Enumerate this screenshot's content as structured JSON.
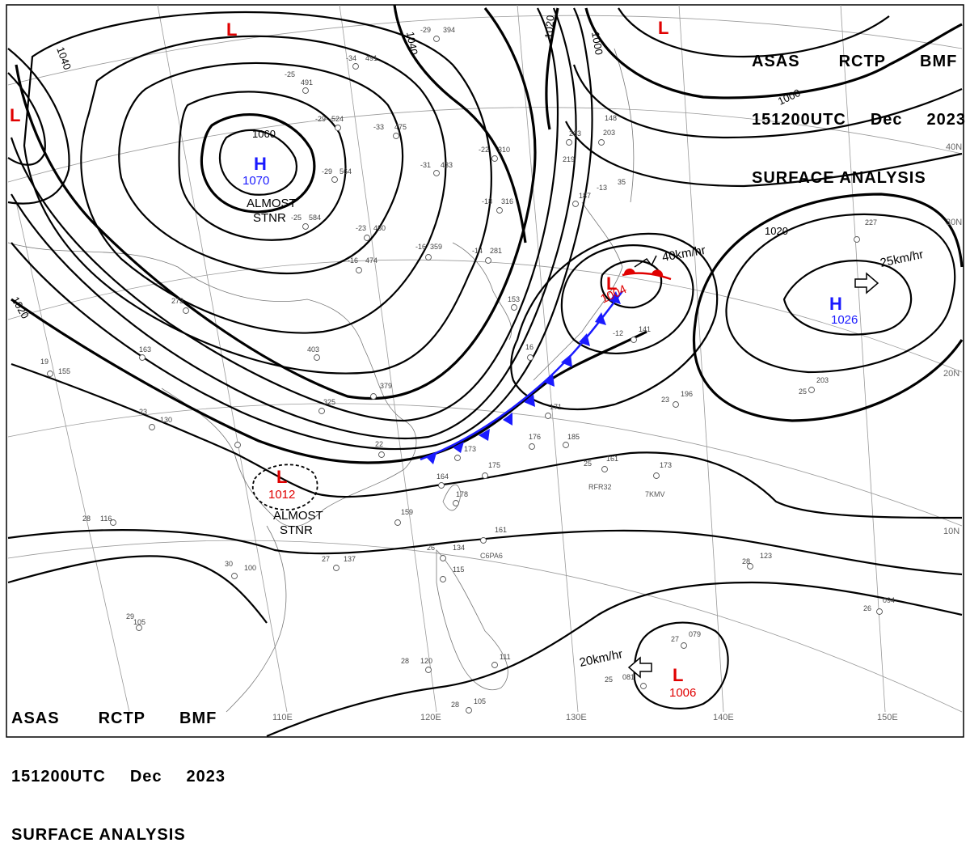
{
  "header": {
    "line1_words": [
      "ASAS",
      "RCTP",
      "BMF"
    ],
    "line2_words": [
      "151200UTC",
      "Dec",
      "2023"
    ],
    "line3": "SURFACE ANALYSIS"
  },
  "pressure_centers": [
    {
      "type": "H",
      "pressure": "1070",
      "note1": "ALMOST",
      "note2": "STNR",
      "color": "#1a1aff"
    },
    {
      "type": "H",
      "pressure": "1026",
      "motion": "25km/hr",
      "color": "#1a1aff"
    },
    {
      "type": "L",
      "pressure": "1004",
      "motion": "40km/hr",
      "color": "#e00000"
    },
    {
      "type": "L",
      "pressure": "1012",
      "note1": "ALMOST",
      "note2": "STNR",
      "color": "#e00000"
    },
    {
      "type": "L",
      "pressure": "1006",
      "motion": "20km/hr",
      "color": "#e00000"
    },
    {
      "type": "L",
      "color": "#e00000"
    },
    {
      "type": "L",
      "color": "#e00000"
    },
    {
      "type": "L",
      "color": "#e00000"
    }
  ],
  "isobar_labels": [
    "1040",
    "1040",
    "1020",
    "1000",
    "1000",
    "1060",
    "1020",
    "1020"
  ],
  "longitude_labels": [
    "110E",
    "120E",
    "130E",
    "140E",
    "150E"
  ],
  "latitude_labels": [
    "40N",
    "30N",
    "20N",
    "10N"
  ],
  "station_numbers": [
    "-29",
    "394",
    "-34",
    "491",
    "-25",
    "491",
    "-29",
    "524",
    "-33",
    "475",
    "-29",
    "564",
    "-31",
    "433",
    "-22",
    "310",
    "-18",
    "316",
    "-25",
    "584",
    "-23",
    "480",
    "-16",
    "474",
    "-16",
    "359",
    "-14",
    "281",
    "403",
    "379",
    "325",
    "273",
    "163",
    "155",
    "130",
    "19",
    "23",
    "22",
    "173",
    "175",
    "164",
    "178",
    "159",
    "116",
    "28",
    "137",
    "27",
    "100",
    "30",
    "105",
    "29",
    "134",
    "26",
    "115",
    "161",
    "185",
    "176",
    "171",
    "141",
    "203",
    "196",
    "23",
    "25",
    "203",
    "227",
    "161",
    "25",
    "173",
    "123",
    "28",
    "094",
    "26",
    "079",
    "27",
    "081",
    "25",
    "111",
    "120",
    "28",
    "105",
    "28",
    "153",
    "16",
    "187",
    "203",
    "219",
    "-13",
    "35",
    "148",
    "-12"
  ],
  "ship_ids": [
    "RFR32",
    "7KMV",
    "C6PA6"
  ],
  "colors": {
    "high": "#1a1aff",
    "low": "#e00000",
    "cold_front": "#1a1aff",
    "warm_front": "#e00000",
    "isobar": "#000000"
  }
}
